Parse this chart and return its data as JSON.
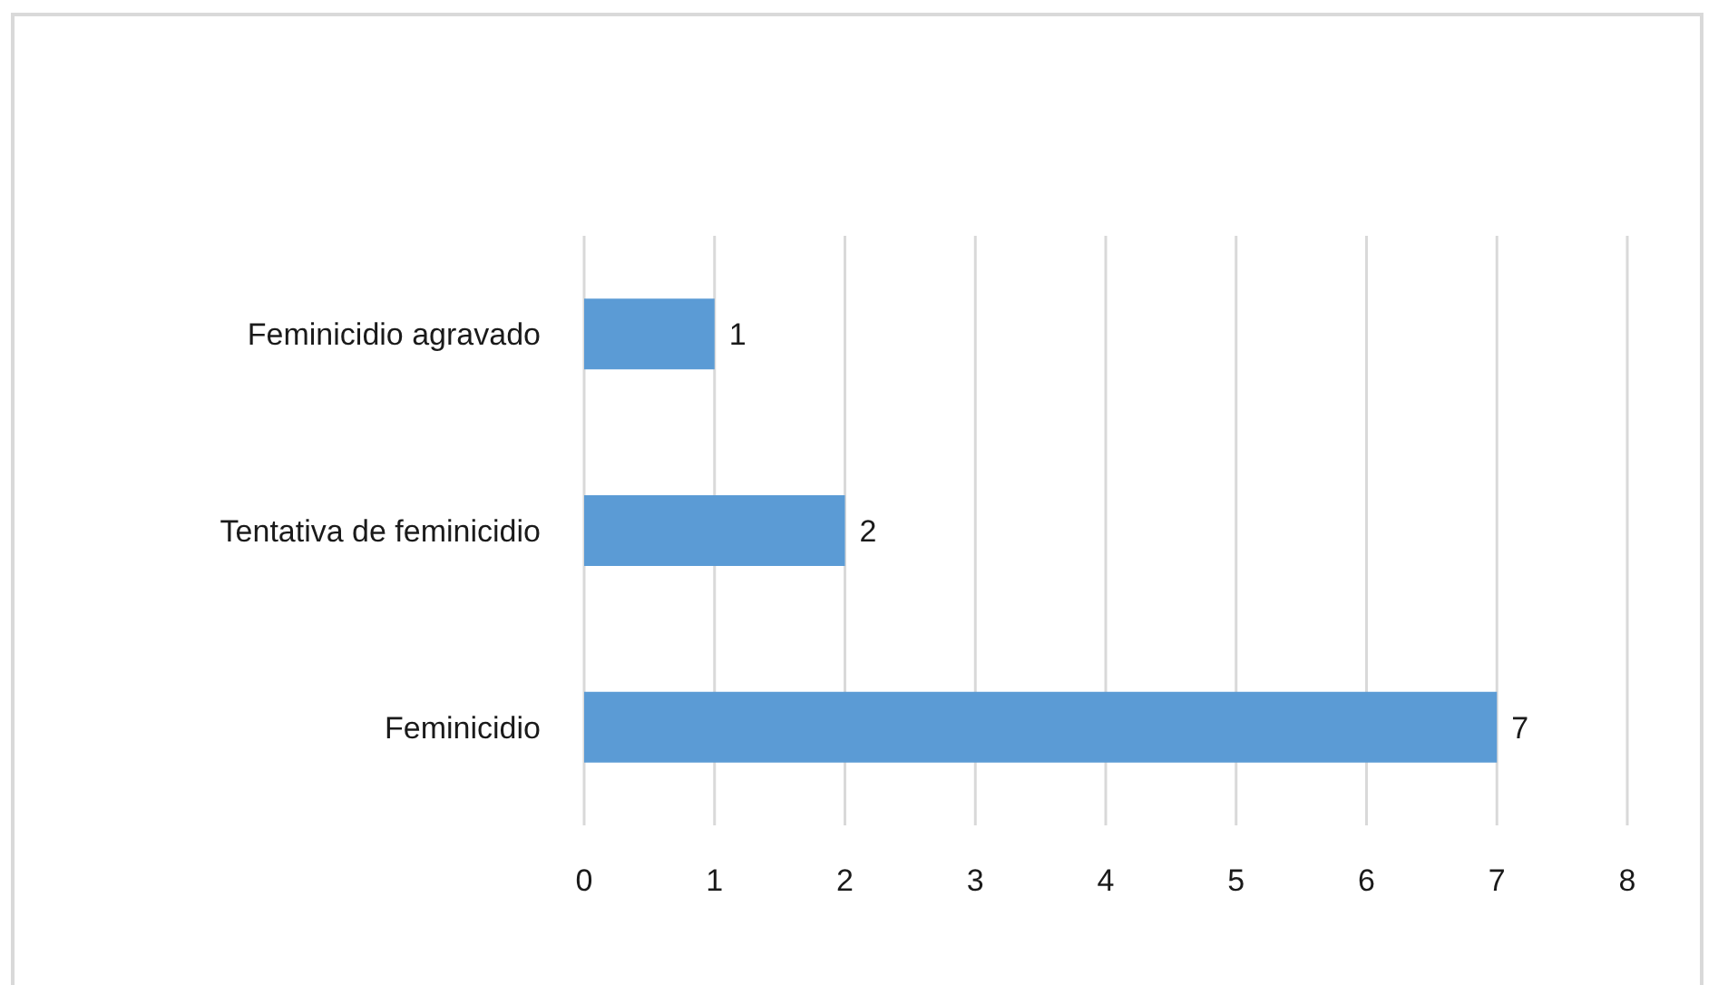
{
  "chart_data": {
    "type": "bar",
    "orientation": "horizontal",
    "categories": [
      "Feminicidio agravado",
      "Tentativa de feminicidio",
      "Feminicidio"
    ],
    "values": [
      1,
      2,
      7
    ],
    "color": "#5b9bd5",
    "xlim": [
      0,
      8
    ],
    "xticks": [
      0,
      1,
      2,
      3,
      4,
      5,
      6,
      7,
      8
    ],
    "grid": "x",
    "data_labels": true
  }
}
